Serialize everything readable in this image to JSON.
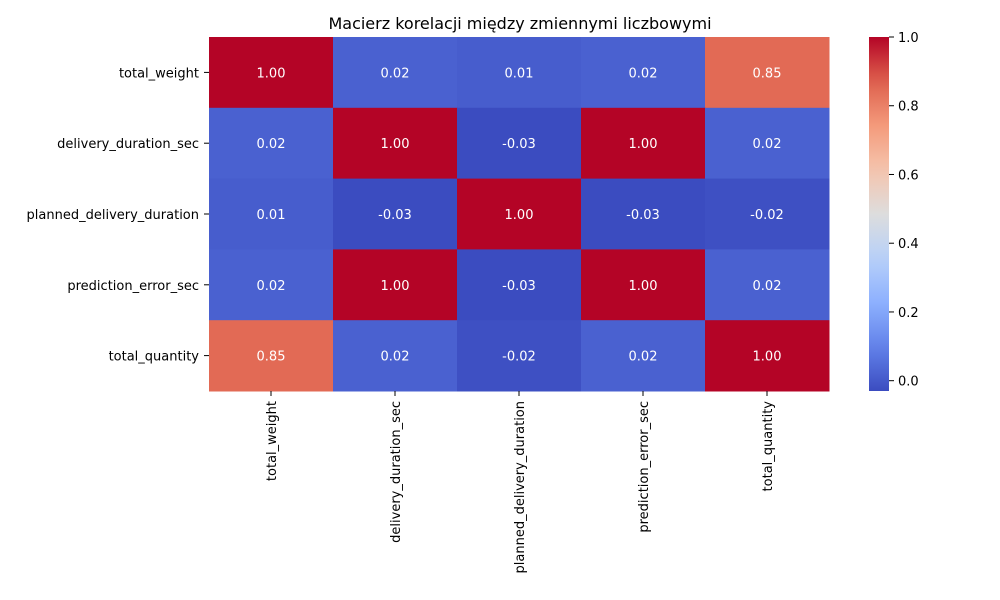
{
  "chart_data": {
    "type": "heatmap",
    "title": "Macierz korelacji między zmiennymi liczbowymi",
    "rows": [
      "total_weight",
      "delivery_duration_sec",
      "planned_delivery_duration",
      "prediction_error_sec",
      "total_quantity"
    ],
    "columns": [
      "total_weight",
      "delivery_duration_sec",
      "planned_delivery_duration",
      "prediction_error_sec",
      "total_quantity"
    ],
    "values": [
      [
        1.0,
        0.02,
        0.01,
        0.02,
        0.85
      ],
      [
        0.02,
        1.0,
        -0.03,
        1.0,
        0.02
      ],
      [
        0.01,
        -0.03,
        1.0,
        -0.03,
        -0.02
      ],
      [
        0.02,
        1.0,
        -0.03,
        1.0,
        0.02
      ],
      [
        0.85,
        0.02,
        -0.02,
        0.02,
        1.0
      ]
    ],
    "value_format": "0.00",
    "colormap": "coolwarm",
    "colorbar": {
      "min": -0.03,
      "max": 1.0,
      "ticks": [
        0.0,
        0.2,
        0.4,
        0.6,
        0.8,
        1.0
      ],
      "tick_labels": [
        "0.0",
        "0.2",
        "0.4",
        "0.6",
        "0.8",
        "1.0"
      ]
    },
    "xlabel": "",
    "ylabel": ""
  }
}
